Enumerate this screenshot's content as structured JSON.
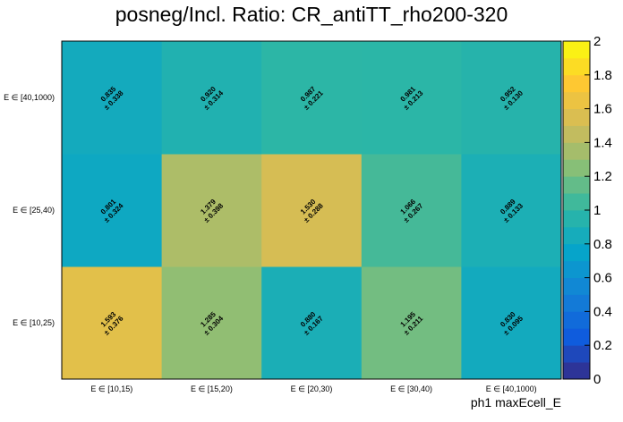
{
  "chart_data": {
    "type": "heatmap",
    "title": "posneg/Incl. Ratio: CR_antiTT_rho200-320",
    "xlabel": "ph1 maxEcell_E",
    "ylabel": "",
    "x_categories": [
      "E ∈ [10,15)",
      "E ∈ [15,20)",
      "E ∈ [20,30)",
      "E ∈ [30,40)",
      "E ∈ [40,1000)"
    ],
    "y_categories": [
      "E ∈ [10,25)",
      "E ∈ [25,40)",
      "E ∈ [40,1000)"
    ],
    "values": [
      [
        1.593,
        1.285,
        0.88,
        1.195,
        0.83
      ],
      [
        0.801,
        1.379,
        1.53,
        1.066,
        0.889
      ],
      [
        0.835,
        0.92,
        0.987,
        0.981,
        0.952
      ]
    ],
    "errors": [
      [
        0.376,
        0.304,
        0.167,
        0.211,
        0.095
      ],
      [
        0.324,
        0.398,
        0.288,
        0.267,
        0.133
      ],
      [
        0.338,
        0.314,
        0.221,
        0.213,
        0.13
      ]
    ],
    "zlim": [
      0,
      2
    ],
    "colorbar_ticks": [
      "0",
      "0.2",
      "0.4",
      "0.6",
      "0.8",
      "1",
      "1.2",
      "1.4",
      "1.6",
      "1.8",
      "2"
    ],
    "palette": [
      "#352a87",
      "#0f5cdd",
      "#1481d6",
      "#06a4ca",
      "#2eb7a4",
      "#87bf77",
      "#d1bb59",
      "#fec832",
      "#f9fb0e"
    ]
  }
}
